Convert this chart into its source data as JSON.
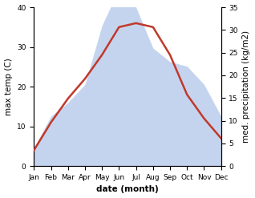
{
  "months": [
    "Jan",
    "Feb",
    "Mar",
    "Apr",
    "May",
    "Jun",
    "Jul",
    "Aug",
    "Sep",
    "Oct",
    "Nov",
    "Dec"
  ],
  "temp": [
    4,
    11,
    17,
    22,
    28,
    35,
    36,
    35,
    28,
    18,
    12,
    7
  ],
  "precip": [
    4,
    11,
    14,
    18,
    31,
    39,
    35,
    26,
    23,
    22,
    18,
    11
  ],
  "temp_color": "#c0392b",
  "precip_fill_color": "#c5d4ee",
  "ylim_left": [
    0,
    40
  ],
  "ylim_right": [
    0,
    35
  ],
  "xlabel": "date (month)",
  "ylabel_left": "max temp (C)",
  "ylabel_right": "med. precipitation (kg/m2)",
  "bg_color": "#ffffff",
  "label_fontsize": 7.5,
  "tick_fontsize": 6.5
}
